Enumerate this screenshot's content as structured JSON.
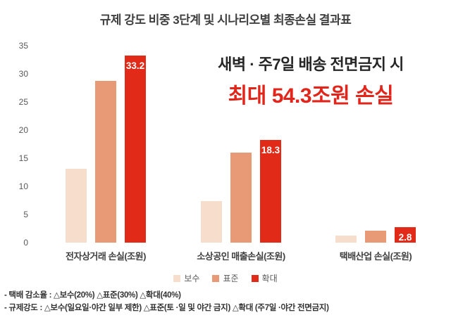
{
  "title": "규제 강도 비중 3단계 및 시나리오별 최종손실 결과표",
  "annotation": {
    "line1": "새벽 · 주7일 배송 전면금지 시",
    "line2": "최대 54.3조원 손실"
  },
  "chart_data": {
    "type": "bar",
    "title": "규제 강도 비중 3단계 및 시나리오별 최종손실 결과표",
    "categories": [
      "전자상거래 손실(조원)",
      "소상공인 매출손실(조원)",
      "택배산업 손실(조원)"
    ],
    "series": [
      {
        "id": "conservative",
        "name": "보수",
        "color": "#f7ddcc",
        "values": [
          13.1,
          7.4,
          1.3
        ]
      },
      {
        "id": "standard",
        "name": "표준",
        "color": "#e89a77",
        "values": [
          28.7,
          16.0,
          2.1
        ]
      },
      {
        "id": "expanded",
        "name": "확대",
        "color": "#e12a17",
        "values": [
          33.2,
          18.3,
          2.8
        ],
        "labels": [
          "33.2",
          "18.3",
          "2.8"
        ],
        "label_color": "#ffffff"
      }
    ],
    "xlabel": "",
    "ylabel": "",
    "ylim": [
      0,
      35
    ],
    "yticks": [
      0,
      5,
      10,
      15,
      20,
      25,
      30,
      35
    ],
    "grid": false,
    "legend_position": "bottom"
  },
  "footnotes": [
    "- 택배 감소율 : △보수(20%) △표준(30%) △확대(40%)",
    "- 규제강도 : △보수(일요일·야간 일부 제한) △표준(토 ·일 및 야간 금지) △확대 (주7일 ·야간 전면금지)"
  ],
  "colors": {
    "accent_red": "#e12a17",
    "annotation_red": "#e2251a",
    "title_gray": "#3f3f3f",
    "axis_gray": "#595959"
  }
}
